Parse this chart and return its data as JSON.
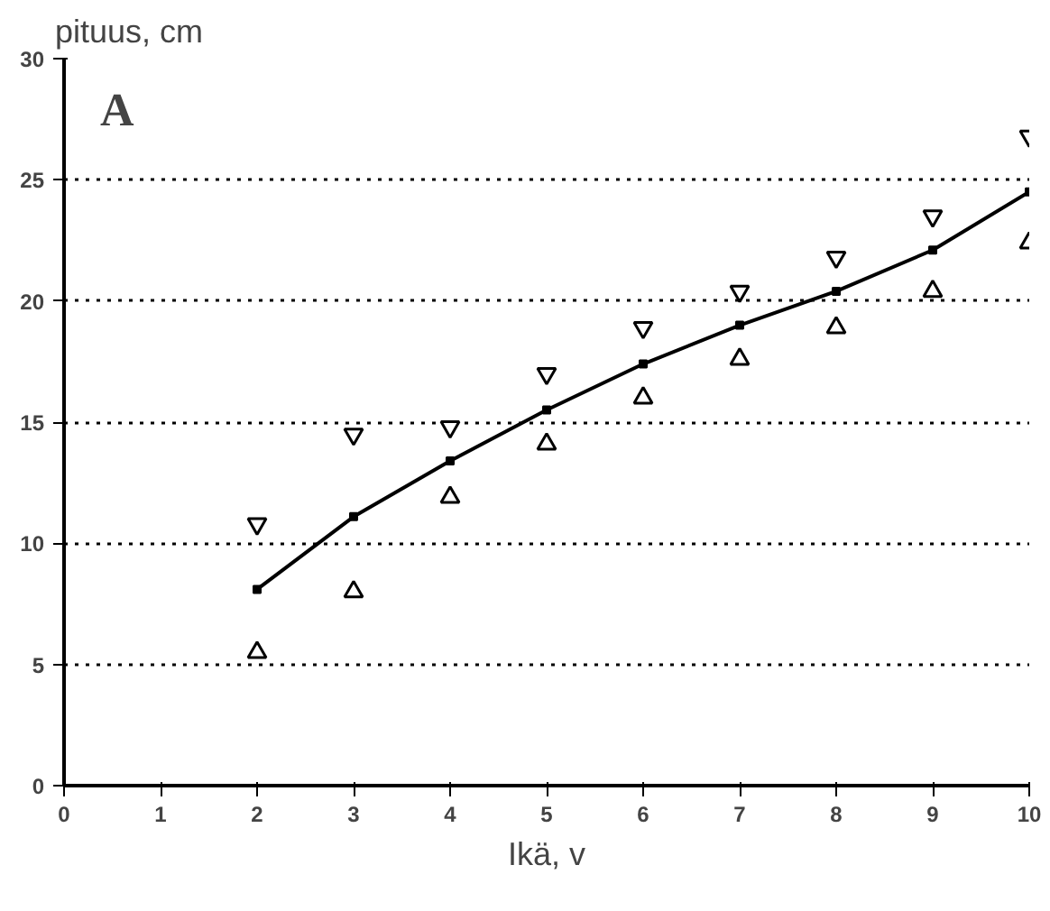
{
  "chart_data": {
    "type": "line",
    "xlabel": "Ikä, v",
    "ylabel": "pituus, cm",
    "annotations": [
      "A"
    ],
    "x": [
      2,
      3,
      4,
      5,
      6,
      7,
      8,
      9,
      10
    ],
    "series": [
      {
        "color": "#000000",
        "marker": "square",
        "values": [
          8.1,
          11.1,
          13.4,
          15.5,
          17.4,
          19.0,
          20.4,
          22.1,
          24.5
        ]
      },
      {
        "type": "scatter",
        "color": "#000000",
        "values": [
          10.8,
          14.5,
          14.8,
          17.0,
          18.9,
          20.4,
          21.8,
          23.5,
          26.8
        ]
      },
      {
        "type": "scatter",
        "color": "#000000",
        "marker": "triangle",
        "values": [
          5.5,
          8.0,
          11.9,
          14.1,
          16.0,
          17.6,
          18.9,
          20.4,
          22.4
        ]
      }
    ],
    "xlim": [
      0,
      10
    ],
    "ylim": [
      0,
      30
    ],
    "xticks": [
      0,
      1,
      2,
      3,
      4,
      5,
      6,
      7,
      8,
      9,
      10
    ],
    "yticks": [
      0,
      5,
      10,
      15,
      20,
      25,
      30
    ],
    "grid": "y"
  }
}
